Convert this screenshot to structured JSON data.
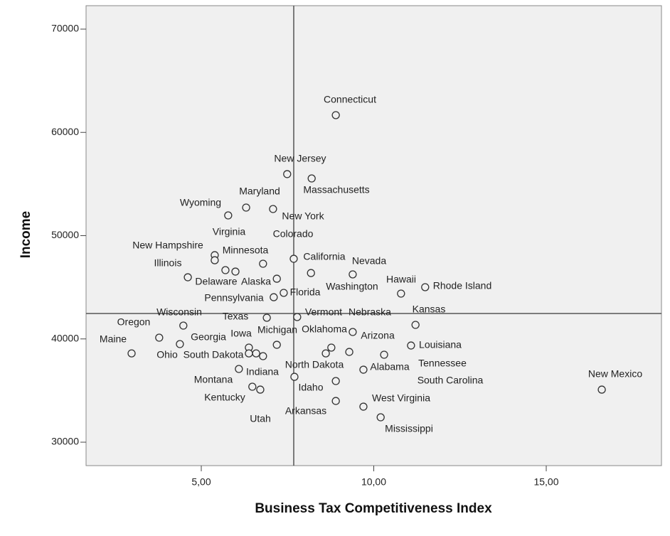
{
  "chart_data": {
    "type": "scatter",
    "x_label": "Business Tax Competitiveness  Index",
    "y_label": "Income",
    "xlim": [
      1.66,
      18.34
    ],
    "ylim": [
      27730,
      72270
    ],
    "xticks": [
      {
        "value": 5,
        "label": "5,00"
      },
      {
        "value": 10,
        "label": "10,00"
      },
      {
        "value": 15,
        "label": "15,00"
      }
    ],
    "yticks": [
      30000,
      40000,
      50000,
      60000,
      70000
    ],
    "reference_lines": {
      "x": 7.68,
      "y": 42460
    },
    "color": "#333333",
    "labels": [
      "Connecticut",
      "New Jersey",
      "Massachusetts",
      "Maryland",
      "Wyoming",
      "New York",
      "Virginia",
      "Colorado",
      "New Hampshire",
      "Minnesota",
      "Illinois",
      "California",
      "Nevada",
      "Delaware",
      "Alaska",
      "Hawaii",
      "Rhode Island",
      "Washington",
      "Florida",
      "Pennsylvania",
      "Wisconsin",
      "Texas",
      "Vermont",
      "Nebraska",
      "Kansas",
      "Oregon",
      "Maine",
      "Georgia",
      "Iowa",
      "Michigan",
      "Oklahoma",
      "Arizona",
      "Louisiana",
      "Ohio",
      "South Dakota",
      "North Dakota",
      "Alabama",
      "Tennessee",
      "Indiana",
      "Idaho",
      "South Carolina",
      "New Mexico",
      "Kentucky",
      "West Virginia",
      "Utah",
      "Arkansas",
      "Mississippi",
      "Montana"
    ],
    "x": [
      8.9,
      7.49,
      8.2,
      6.3,
      5.78,
      7.08,
      5.99,
      6.79,
      5.39,
      5.39,
      5.7,
      7.68,
      9.39,
      4.61,
      7.19,
      10.79,
      11.49,
      8.18,
      7.39,
      7.1,
      4.48,
      6.9,
      7.78,
      8.77,
      11.21,
      3.78,
      2.98,
      4.38,
      6.38,
      7.19,
      9.39,
      9.29,
      11.08,
      6.38,
      6.59,
      8.61,
      9.7,
      10.3,
      6.09,
      7.7,
      8.9,
      16.61,
      6.48,
      9.7,
      6.71,
      8.9,
      10.2,
      6.79
    ],
    "values": [
      61670,
      55960,
      55540,
      52720,
      51960,
      52580,
      46520,
      47280,
      48110,
      47620,
      46660,
      47760,
      46250,
      45970,
      45830,
      44390,
      45010,
      46380,
      44460,
      44040,
      41290,
      42050,
      42120,
      39160,
      41360,
      40120,
      38600,
      39500,
      39160,
      39430,
      40670,
      38740,
      39360,
      38600,
      38600,
      38600,
      37020,
      38470,
      37090,
      36330,
      35920,
      35090,
      35370,
      33440,
      35090,
      33990,
      32410,
      38330
    ]
  }
}
